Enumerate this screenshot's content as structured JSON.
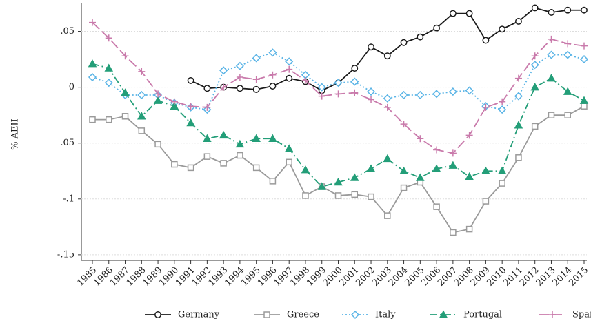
{
  "chart_data": {
    "type": "line",
    "y_label": "% AEII",
    "x": [
      1985,
      1986,
      1987,
      1988,
      1989,
      1990,
      1991,
      1992,
      1993,
      1994,
      1995,
      1996,
      1997,
      1998,
      1999,
      2000,
      2001,
      2002,
      2003,
      2004,
      2005,
      2006,
      2007,
      2008,
      2009,
      2010,
      2011,
      2012,
      2013,
      2014,
      2015
    ],
    "xlim": [
      1985,
      2015
    ],
    "xticks": [
      1985,
      1986,
      1987,
      1988,
      1989,
      1990,
      1991,
      1992,
      1993,
      1994,
      1995,
      1996,
      1997,
      1998,
      1999,
      2000,
      2001,
      2002,
      2003,
      2004,
      2005,
      2006,
      2007,
      2008,
      2009,
      2010,
      2011,
      2012,
      2013,
      2014,
      2015
    ],
    "ylim": [
      -0.155,
      0.075
    ],
    "yticks": [
      {
        "value": 0.05,
        "label": ".05"
      },
      0,
      {
        "value": -0.05,
        "label": "-.05"
      },
      {
        "value": -0.1,
        "label": "-.1"
      },
      {
        "value": -0.15,
        "label": "-.15"
      }
    ],
    "grid": true,
    "legend": "bottom",
    "series": [
      {
        "name": "Germany",
        "color": "#1a1a1a",
        "marker": "circle",
        "dash": "solid",
        "values": [
          null,
          null,
          null,
          null,
          null,
          null,
          0.006,
          -0.001,
          0,
          -0.001,
          -0.002,
          0.001,
          0.008,
          0.005,
          -0.003,
          0.004,
          0.017,
          0.036,
          0.028,
          0.04,
          0.045,
          0.053,
          0.066,
          0.066,
          0.042,
          0.052,
          0.059,
          0.071,
          0.067,
          0.069,
          0.069
        ]
      },
      {
        "name": "Greece",
        "color": "#9a9a9a",
        "marker": "square",
        "dash": "solid",
        "values": [
          -0.029,
          -0.029,
          -0.026,
          -0.039,
          -0.051,
          -0.069,
          -0.072,
          -0.062,
          -0.068,
          -0.061,
          -0.072,
          -0.084,
          -0.067,
          -0.097,
          -0.089,
          -0.097,
          -0.096,
          -0.098,
          -0.115,
          -0.09,
          -0.085,
          -0.107,
          -0.13,
          -0.127,
          -0.102,
          -0.086,
          -0.063,
          -0.035,
          -0.025,
          -0.025,
          -0.017
        ]
      },
      {
        "name": "Italy",
        "color": "#5ab4e6",
        "marker": "diamond",
        "dash": "dot",
        "values": [
          0.009,
          0.004,
          -0.007,
          -0.007,
          -0.007,
          -0.014,
          -0.018,
          -0.02,
          0.015,
          0.019,
          0.026,
          0.031,
          0.023,
          0.011,
          0,
          0.004,
          0.005,
          -0.004,
          -0.01,
          -0.007,
          -0.007,
          -0.006,
          -0.004,
          -0.003,
          -0.017,
          -0.02,
          -0.008,
          0.02,
          0.029,
          0.029,
          0.025
        ]
      },
      {
        "name": "Portugal",
        "color": "#239e78",
        "marker": "triangle",
        "dash": "dashdot",
        "values": [
          0.021,
          0.017,
          -0.005,
          -0.026,
          -0.012,
          -0.017,
          -0.032,
          -0.046,
          -0.043,
          -0.051,
          -0.046,
          -0.046,
          -0.055,
          -0.074,
          -0.089,
          -0.085,
          -0.081,
          -0.073,
          -0.064,
          -0.075,
          -0.081,
          -0.073,
          -0.07,
          -0.08,
          -0.075,
          -0.075,
          -0.034,
          0,
          0.008,
          -0.004,
          -0.012
        ]
      },
      {
        "name": "Spain",
        "color": "#c97aab",
        "marker": "plus",
        "dash": "longdash",
        "values": [
          0.058,
          0.044,
          0.028,
          0.014,
          -0.006,
          -0.013,
          -0.017,
          -0.018,
          0,
          0.009,
          0.007,
          0.011,
          0.016,
          0.006,
          -0.008,
          -0.006,
          -0.005,
          -0.011,
          -0.018,
          -0.033,
          -0.046,
          -0.056,
          -0.059,
          -0.043,
          -0.018,
          -0.013,
          0.008,
          0.028,
          0.043,
          0.039,
          0.037
        ]
      }
    ]
  }
}
